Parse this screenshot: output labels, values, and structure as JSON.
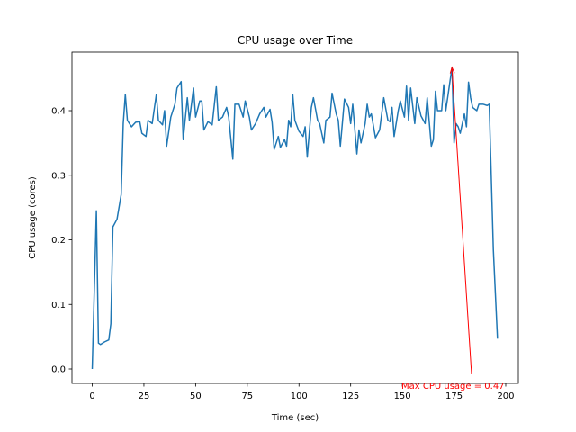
{
  "chart_data": {
    "type": "line",
    "title": "CPU usage over Time",
    "xlabel": "Time (sec)",
    "ylabel": "CPU usage (cores)",
    "x": [
      0,
      2,
      3,
      4,
      6,
      8,
      9,
      10,
      12,
      14,
      15,
      16,
      17,
      19,
      21,
      23,
      24,
      26,
      27,
      29,
      31,
      32,
      34,
      35,
      36,
      38,
      40,
      41,
      43,
      44,
      46,
      47,
      49,
      50,
      52,
      53,
      54,
      56,
      58,
      60,
      61,
      63,
      65,
      66,
      68,
      69,
      71,
      73,
      74,
      76,
      77,
      79,
      81,
      83,
      84,
      86,
      87,
      88,
      90,
      91,
      93,
      94,
      95,
      96,
      97,
      98,
      100,
      102,
      103,
      104,
      106,
      107,
      109,
      110,
      112,
      113,
      115,
      116,
      118,
      119,
      120,
      122,
      124,
      125,
      126,
      128,
      129,
      130,
      132,
      133,
      134,
      135,
      137,
      139,
      141,
      143,
      144,
      145,
      146,
      148,
      149,
      151,
      152,
      153,
      154,
      156,
      157,
      159,
      161,
      162,
      164,
      165,
      166,
      167,
      169,
      170,
      171,
      174,
      175,
      176,
      177,
      178,
      180,
      181,
      182,
      183,
      184,
      186,
      187,
      189,
      191,
      192,
      194,
      196
    ],
    "values": [
      0.0,
      0.245,
      0.04,
      0.038,
      0.042,
      0.045,
      0.07,
      0.22,
      0.232,
      0.27,
      0.38,
      0.425,
      0.385,
      0.375,
      0.382,
      0.383,
      0.365,
      0.36,
      0.385,
      0.38,
      0.425,
      0.385,
      0.378,
      0.4,
      0.345,
      0.39,
      0.41,
      0.435,
      0.445,
      0.355,
      0.42,
      0.385,
      0.435,
      0.39,
      0.415,
      0.415,
      0.37,
      0.383,
      0.378,
      0.437,
      0.385,
      0.39,
      0.405,
      0.39,
      0.325,
      0.41,
      0.41,
      0.39,
      0.415,
      0.39,
      0.37,
      0.38,
      0.395,
      0.405,
      0.39,
      0.402,
      0.382,
      0.34,
      0.36,
      0.343,
      0.355,
      0.345,
      0.385,
      0.375,
      0.425,
      0.385,
      0.368,
      0.36,
      0.375,
      0.328,
      0.405,
      0.42,
      0.385,
      0.38,
      0.35,
      0.385,
      0.39,
      0.427,
      0.395,
      0.385,
      0.345,
      0.418,
      0.405,
      0.38,
      0.41,
      0.333,
      0.37,
      0.35,
      0.38,
      0.41,
      0.39,
      0.395,
      0.358,
      0.37,
      0.42,
      0.385,
      0.383,
      0.405,
      0.36,
      0.4,
      0.415,
      0.39,
      0.438,
      0.385,
      0.435,
      0.38,
      0.42,
      0.392,
      0.38,
      0.42,
      0.345,
      0.355,
      0.43,
      0.4,
      0.4,
      0.44,
      0.4,
      0.467,
      0.35,
      0.38,
      0.375,
      0.365,
      0.395,
      0.375,
      0.444,
      0.42,
      0.405,
      0.4,
      0.41,
      0.41,
      0.408,
      0.41,
      0.185,
      0.047
    ],
    "color": "#1f77b4",
    "xlim": [
      -9.8,
      206.1
    ],
    "ylim": [
      -0.0223,
      0.4906
    ],
    "xticks": [
      0,
      25,
      50,
      75,
      100,
      125,
      150,
      175,
      200
    ],
    "yticks": [
      {
        "value": 0,
        "label": "0.0"
      },
      0.1,
      0.2,
      0.3,
      0.4
    ],
    "annotation": {
      "text": "Max CPU usage = 0.47",
      "color": "red"
    }
  }
}
